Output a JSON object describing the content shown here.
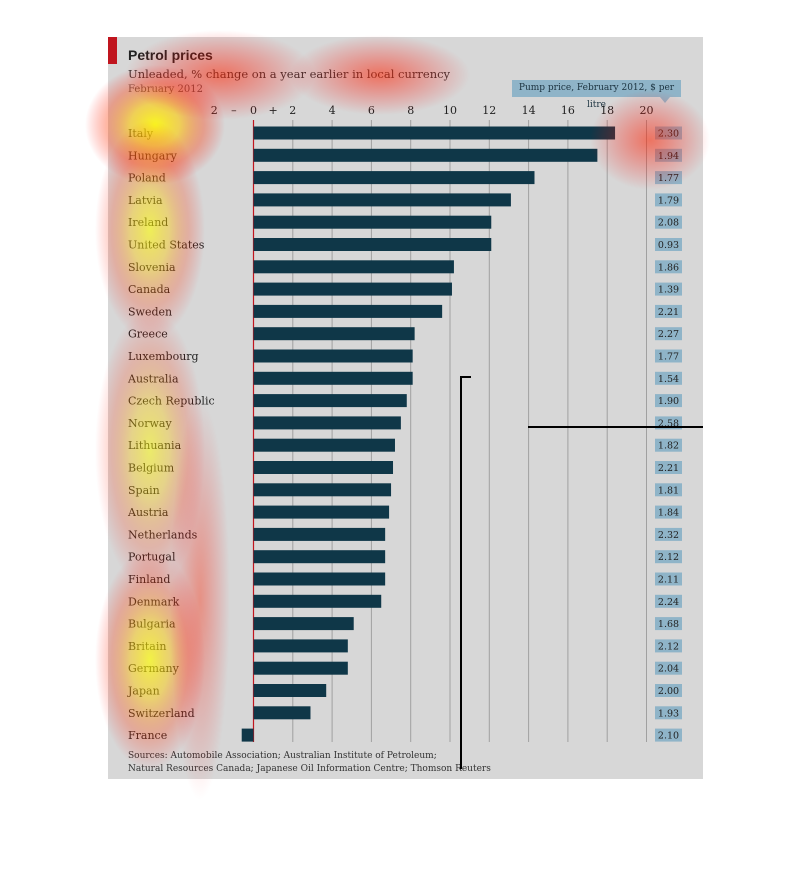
{
  "title": "Petrol prices",
  "subtitle": "Unleaded, % change on a year earlier in local currency",
  "date_note": "February 2012",
  "pump_header": "Pump price, February 2012, $ per litre",
  "sources_line1": "Sources: Automobile Association; Australian Institute of Petroleum;",
  "sources_line2": "Natural Resources Canada; Japanese Oil Information Centre; Thomson Reuters",
  "colors": {
    "bar": "#0f3748",
    "panel": "#d7d7d7",
    "accent": "#c0151e",
    "price_box": "#8fb4c8"
  },
  "chart_data": {
    "type": "bar",
    "orientation": "horizontal",
    "xlim": [
      -3,
      20
    ],
    "ticks": [
      {
        "v": -2,
        "label": "2"
      },
      {
        "v": -1,
        "label": "–"
      },
      {
        "v": 0,
        "label": "0"
      },
      {
        "v": 1,
        "label": "+"
      },
      {
        "v": 2,
        "label": "2"
      },
      {
        "v": 4,
        "label": "4"
      },
      {
        "v": 6,
        "label": "6"
      },
      {
        "v": 8,
        "label": "8"
      },
      {
        "v": 10,
        "label": "10"
      },
      {
        "v": 12,
        "label": "12"
      },
      {
        "v": 14,
        "label": "14"
      },
      {
        "v": 16,
        "label": "16"
      },
      {
        "v": 18,
        "label": "18"
      },
      {
        "v": 20,
        "label": "20"
      }
    ],
    "gridlines": [
      2,
      4,
      6,
      8,
      10,
      12,
      14,
      16,
      18,
      20
    ],
    "rows": [
      {
        "country": "Italy",
        "change": 18.4,
        "price": "2.30"
      },
      {
        "country": "Hungary",
        "change": 17.5,
        "price": "1.94"
      },
      {
        "country": "Poland",
        "change": 14.3,
        "price": "1.77"
      },
      {
        "country": "Latvia",
        "change": 13.1,
        "price": "1.79"
      },
      {
        "country": "Ireland",
        "change": 12.1,
        "price": "2.08"
      },
      {
        "country": "United States",
        "change": 12.1,
        "price": "0.93"
      },
      {
        "country": "Slovenia",
        "change": 10.2,
        "price": "1.86"
      },
      {
        "country": "Canada",
        "change": 10.1,
        "price": "1.39"
      },
      {
        "country": "Sweden",
        "change": 9.6,
        "price": "2.21"
      },
      {
        "country": "Greece",
        "change": 8.2,
        "price": "2.27"
      },
      {
        "country": "Luxembourg",
        "change": 8.1,
        "price": "1.77"
      },
      {
        "country": "Australia",
        "change": 8.1,
        "price": "1.54"
      },
      {
        "country": "Czech Republic",
        "change": 7.8,
        "price": "1.90"
      },
      {
        "country": "Norway",
        "change": 7.5,
        "price": "2.58"
      },
      {
        "country": "Lithuania",
        "change": 7.2,
        "price": "1.82"
      },
      {
        "country": "Belgium",
        "change": 7.1,
        "price": "2.21"
      },
      {
        "country": "Spain",
        "change": 7.0,
        "price": "1.81"
      },
      {
        "country": "Austria",
        "change": 6.9,
        "price": "1.84"
      },
      {
        "country": "Netherlands",
        "change": 6.7,
        "price": "2.32"
      },
      {
        "country": "Portugal",
        "change": 6.7,
        "price": "2.12"
      },
      {
        "country": "Finland",
        "change": 6.7,
        "price": "2.11"
      },
      {
        "country": "Denmark",
        "change": 6.5,
        "price": "2.24"
      },
      {
        "country": "Bulgaria",
        "change": 5.1,
        "price": "1.68"
      },
      {
        "country": "Britain",
        "change": 4.8,
        "price": "2.12"
      },
      {
        "country": "Germany",
        "change": 4.8,
        "price": "2.04"
      },
      {
        "country": "Japan",
        "change": 3.7,
        "price": "2.00"
      },
      {
        "country": "Switzerland",
        "change": 2.9,
        "price": "1.93"
      },
      {
        "country": "France",
        "change": -0.6,
        "price": "2.10"
      }
    ]
  }
}
